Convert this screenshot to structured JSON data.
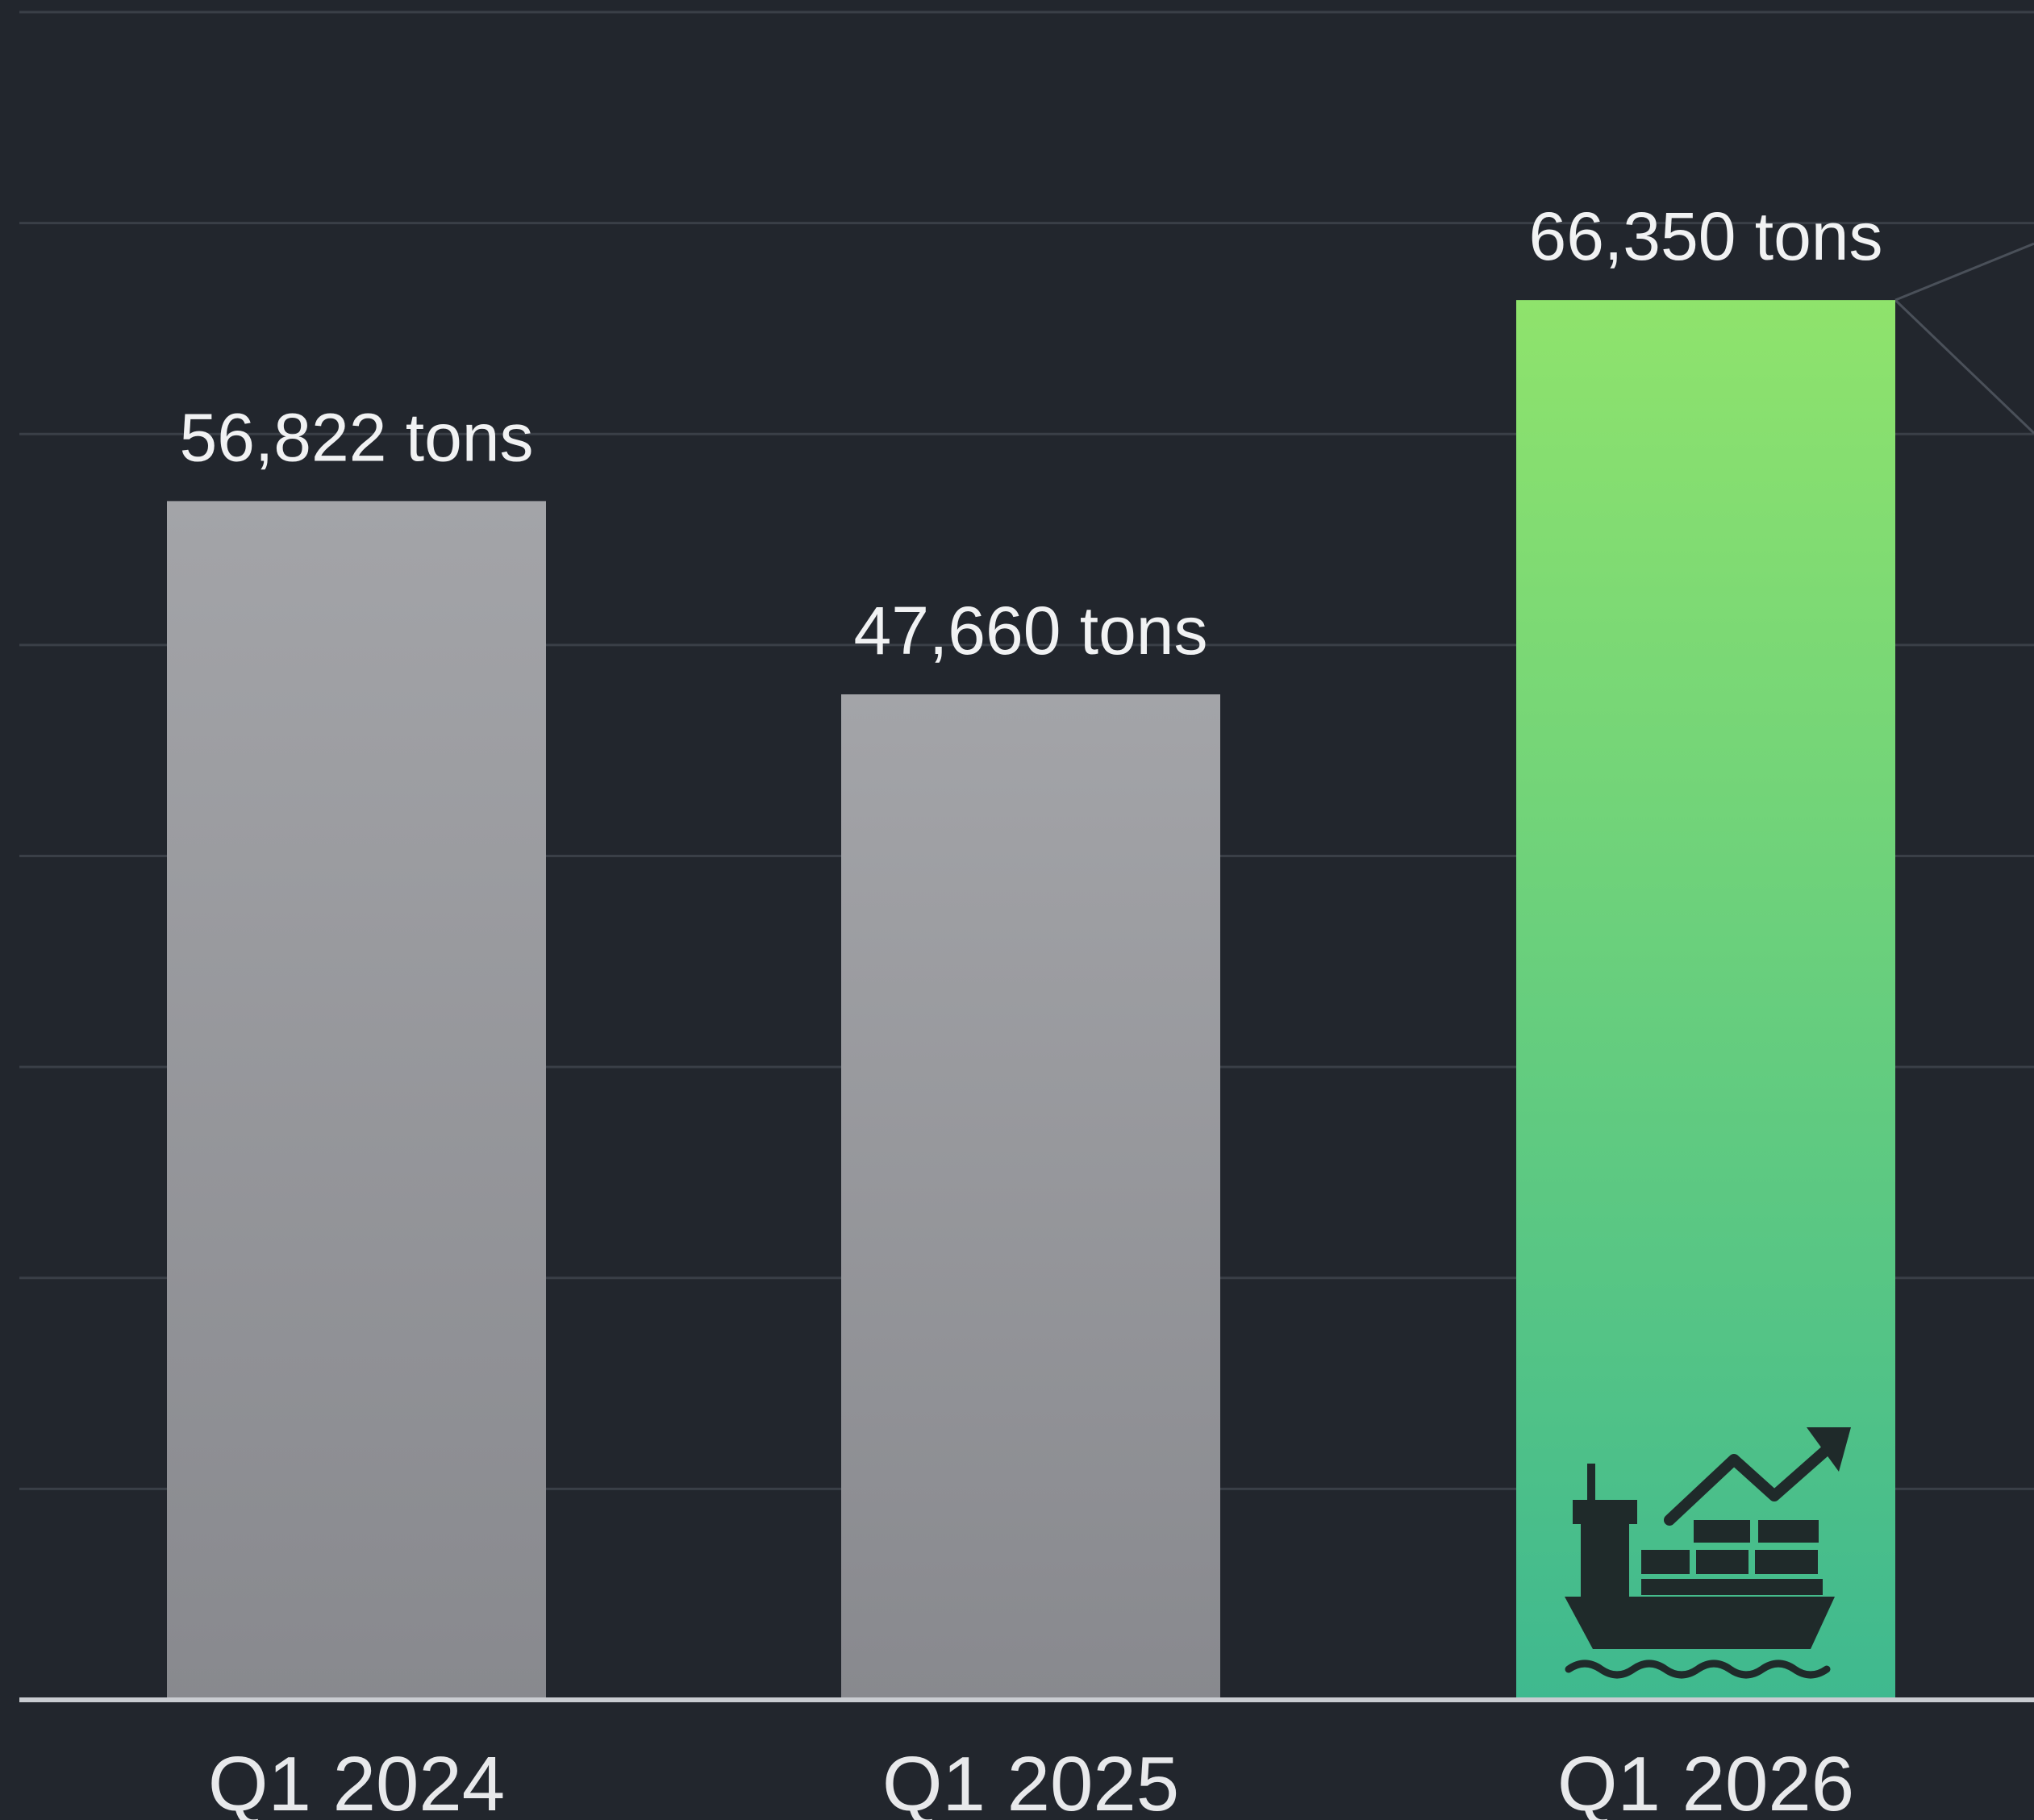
{
  "chart_data": {
    "type": "bar",
    "categories": [
      "Q1 2024",
      "Q1 2025",
      "Q1 2026"
    ],
    "values": [
      56822,
      47660,
      66350
    ],
    "value_labels": [
      "56,822 tons",
      "47,660 tons",
      "66,350 tons"
    ],
    "title": "",
    "xlabel": "",
    "ylabel": "",
    "ylim": [
      0,
      80000
    ],
    "grid": true,
    "highlighted_category": "Q1 2026",
    "colors": {
      "background": "#22262d",
      "gridline": "#3a3f47",
      "baseline": "#c9ccd1",
      "bar_gray_top": "#a3a4a8",
      "bar_gray_bottom": "#88898e",
      "bar_highlight_top": "#8fe36c",
      "bar_highlight_bottom": "#3fb98f",
      "icon": "#1f2a2a"
    },
    "icons": [
      "cargo-ship-growth-icon"
    ]
  }
}
